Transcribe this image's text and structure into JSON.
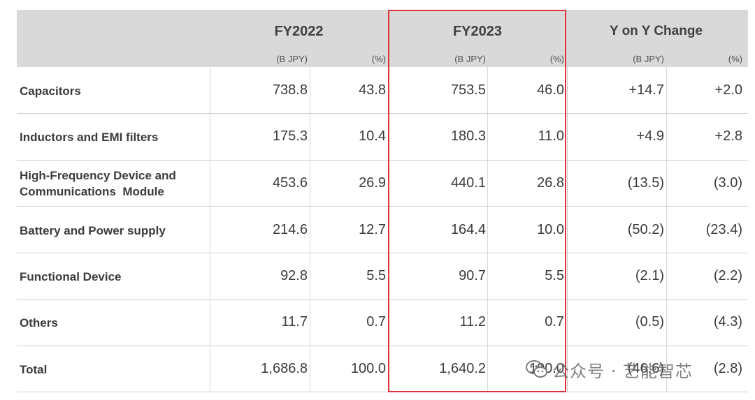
{
  "header": {
    "periods": [
      "FY2022",
      "FY2023",
      "Y on Y Change"
    ],
    "units": [
      "(B JPY)",
      "(%)",
      "(B JPY)",
      "(%)",
      "(B JPY)",
      "(%)"
    ]
  },
  "rows": [
    {
      "label": "Capacitors",
      "values": [
        "738.8",
        "43.8",
        "753.5",
        "46.0",
        "+14.7",
        "+2.0"
      ]
    },
    {
      "label": "Inductors and EMI filters",
      "values": [
        "175.3",
        "10.4",
        "180.3",
        "11.0",
        "+4.9",
        "+2.8"
      ]
    },
    {
      "label_lines": [
        "High-Frequency Device and",
        "Communications  Module"
      ],
      "values": [
        "453.6",
        "26.9",
        "440.1",
        "26.8",
        "(13.5)",
        "(3.0)"
      ]
    },
    {
      "label": "Battery and Power supply",
      "values": [
        "214.6",
        "12.7",
        "164.4",
        "10.0",
        "(50.2)",
        "(23.4)"
      ]
    },
    {
      "label": "Functional Device",
      "values": [
        "92.8",
        "5.5",
        "90.7",
        "5.5",
        "(2.1)",
        "(2.2)"
      ]
    },
    {
      "label": "Others",
      "values": [
        "11.7",
        "0.7",
        "11.2",
        "0.7",
        "(0.5)",
        "(4.3)"
      ]
    },
    {
      "label": "Total",
      "values": [
        "1,686.8",
        "100.0",
        "1,640.2",
        "100.0",
        "(46.6)",
        "(2.8)"
      ]
    }
  ],
  "watermark": {
    "text": "公众号 · 艺能智芯",
    "icon": "wechat-icon"
  },
  "colors": {
    "highlight": "#e0313b",
    "header_bg": "#d9d9d9"
  }
}
